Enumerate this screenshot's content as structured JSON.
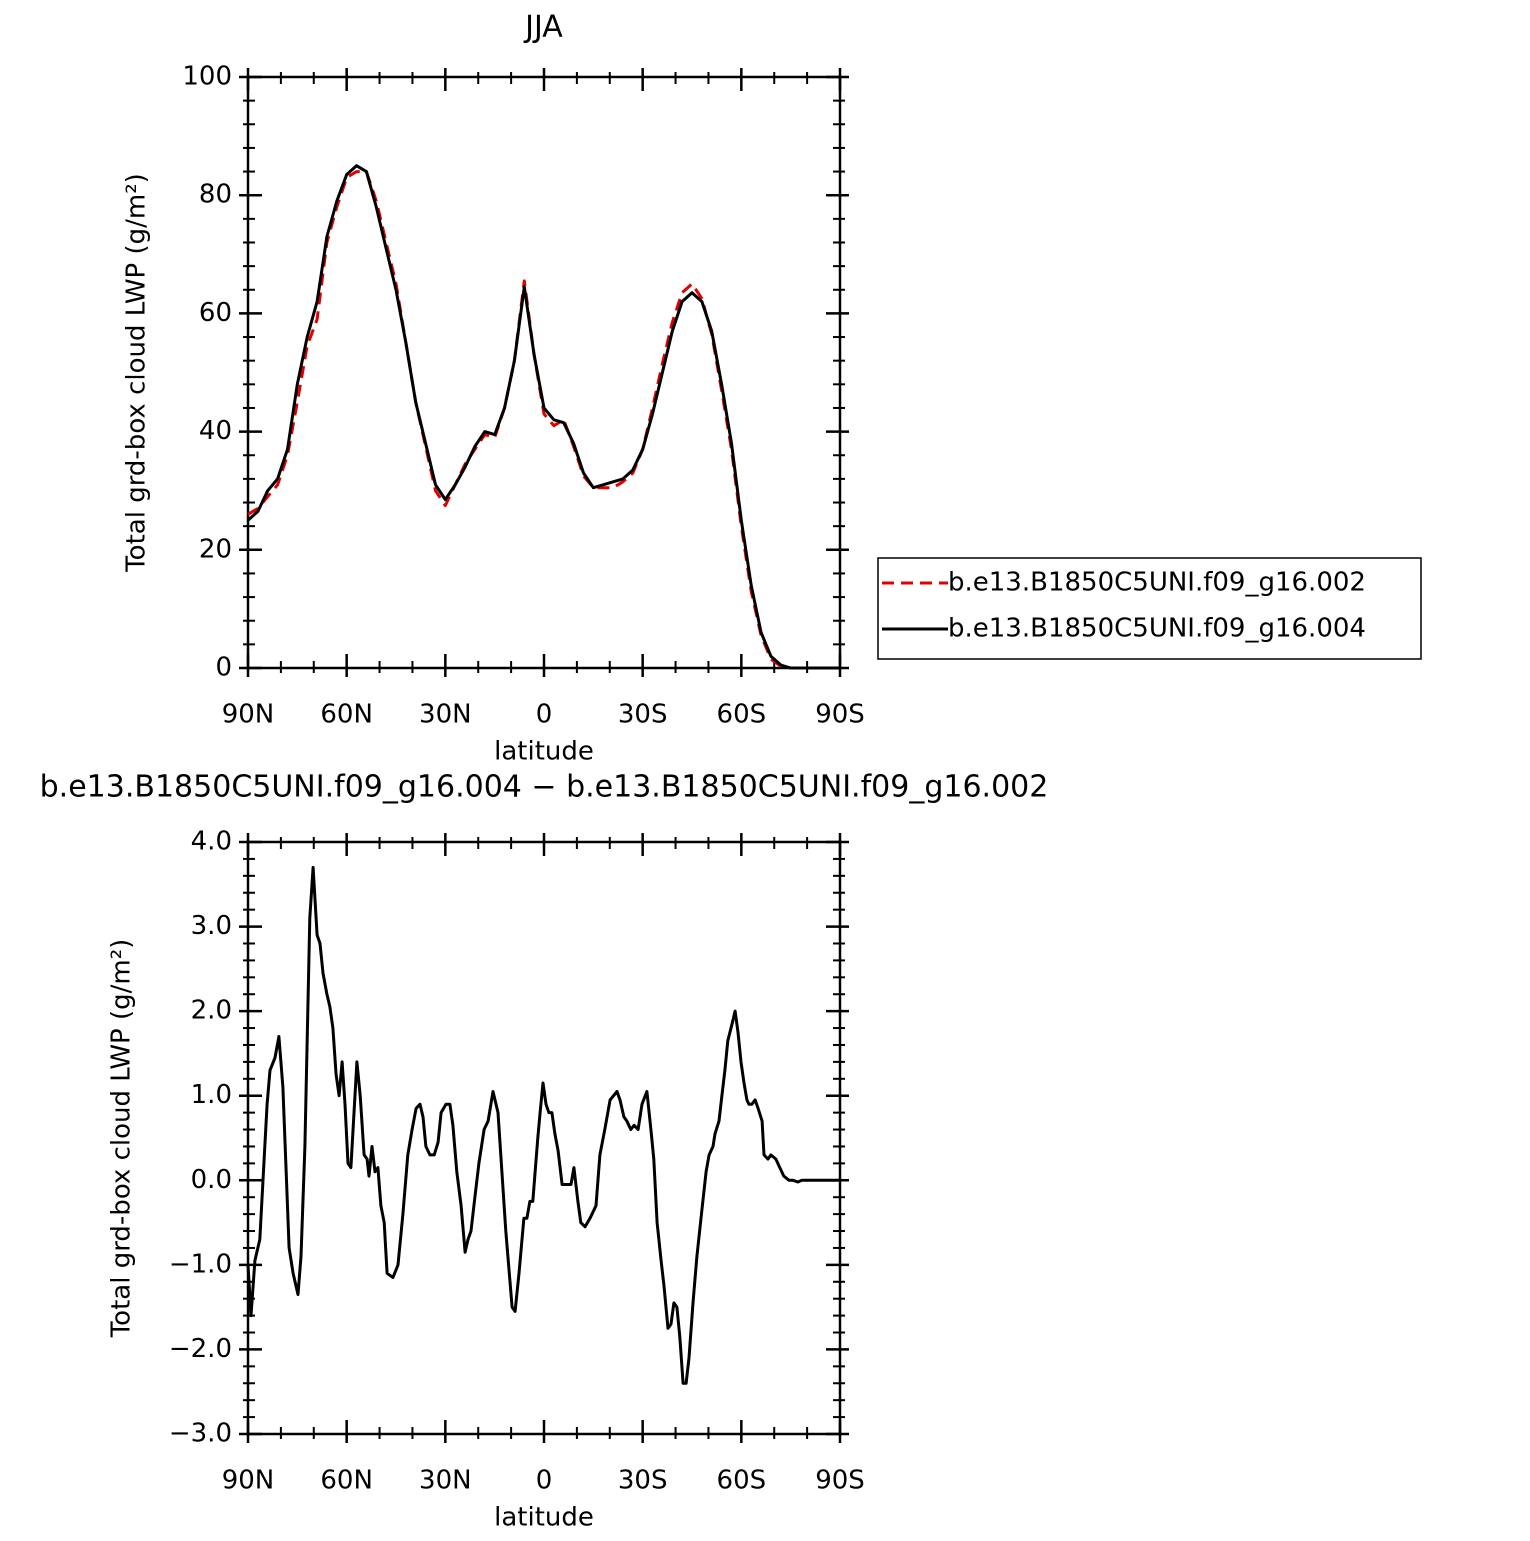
{
  "chart_data": [
    {
      "type": "line",
      "title": "JJA",
      "xlabel": "latitude",
      "ylabel": "Total grd-box cloud LWP (g/m²)",
      "x": [
        90,
        87,
        84,
        81,
        78,
        75,
        72,
        69,
        66,
        63,
        60,
        57,
        54,
        51,
        48,
        45,
        42,
        39,
        36,
        33,
        30,
        27,
        24,
        21,
        18,
        15,
        12,
        9,
        6,
        3,
        0,
        -3,
        -6,
        -9,
        -12,
        -15,
        -18,
        -21,
        -24,
        -27,
        -30,
        -33,
        -36,
        -39,
        -42,
        -45,
        -48,
        -51,
        -54,
        -57,
        -60,
        -63,
        -66,
        -69,
        -72,
        -75,
        -78,
        -81,
        -84,
        -87,
        -90
      ],
      "series": [
        {
          "name": "b.e13.B1850C5UNI.f09_g16.002",
          "color": "#e00000",
          "dash": true,
          "values": [
            26,
            27,
            29,
            31,
            36,
            45,
            54.5,
            59,
            72,
            78,
            83,
            84,
            84,
            79,
            72,
            65,
            55,
            45,
            37.5,
            30,
            27.5,
            31,
            34.5,
            37,
            39.5,
            39,
            44,
            52,
            65.5,
            53,
            43,
            41,
            42,
            37.5,
            32.5,
            30.5,
            30.5,
            30.5,
            31.5,
            33,
            37,
            44,
            51.5,
            58.5,
            63.5,
            65,
            62.5,
            56.5,
            47,
            37,
            24,
            13,
            5.5,
            1.5,
            0.3,
            0,
            0,
            0,
            0,
            0,
            0
          ]
        },
        {
          "name": "b.e13.B1850C5UNI.f09_g16.004",
          "color": "#000000",
          "dash": false,
          "values": [
            25,
            26.5,
            30,
            32,
            37,
            48,
            56,
            62,
            73,
            79,
            83.5,
            85,
            84,
            78,
            71,
            64,
            55,
            45,
            38,
            31,
            28.5,
            31,
            34,
            37.5,
            40,
            39.5,
            44,
            52,
            64.5,
            53,
            44,
            42,
            41.5,
            38,
            33,
            30.5,
            31,
            31.5,
            32,
            33.5,
            37,
            43,
            50,
            57,
            62,
            63.5,
            62,
            57,
            48,
            38,
            25,
            14,
            6,
            2,
            0.5,
            0,
            0,
            0,
            0,
            0,
            0
          ]
        }
      ],
      "xlim": [
        90,
        -90
      ],
      "xticks": [
        {
          "value": 90,
          "label": "90N"
        },
        {
          "value": 60,
          "label": "60N"
        },
        {
          "value": 30,
          "label": "30N"
        },
        0,
        {
          "value": -30,
          "label": "30S"
        },
        {
          "value": -60,
          "label": "60S"
        },
        {
          "value": -90,
          "label": "90S"
        }
      ],
      "ylim": [
        0,
        100
      ],
      "yticks": [
        0,
        20,
        40,
        60,
        80,
        100
      ],
      "legend": "right"
    },
    {
      "type": "line",
      "title": "b.e13.B1850C5UNI.f09_g16.004 − b.e13.B1850C5UNI.f09_g16.002",
      "xlabel": "latitude",
      "ylabel": "Total grd-box cloud LWP (g/m²)",
      "x": [
        90,
        89.1,
        87.9,
        86.4,
        84.2,
        83.3,
        81.8,
        80.6,
        79.4,
        77.5,
        76.3,
        74.8,
        73.9,
        72.7,
        71.2,
        70.2,
        69.0,
        68.1,
        67.2,
        66.0,
        65.1,
        64.2,
        63.2,
        62.3,
        61.4,
        60.5,
        59.6,
        58.7,
        56.9,
        55.9,
        54.7,
        53.8,
        53.2,
        52.3,
        51.4,
        50.5,
        49.6,
        48.6,
        47.7,
        45.9,
        44.4,
        42.9,
        41.4,
        40.1,
        38.9,
        37.7,
        36.8,
        35.9,
        34.7,
        33.4,
        32.2,
        31.3,
        29.8,
        28.6,
        27.7,
        26.5,
        25.2,
        24.0,
        23.1,
        22.2,
        21.0,
        19.8,
        18.2,
        17.0,
        15.5,
        14.0,
        12.8,
        11.6,
        9.7,
        8.8,
        7.6,
        6.1,
        5.2,
        4.3,
        3.4,
        1.9,
        1.2,
        0.3,
        -0.6,
        -1.5,
        -2.4,
        -3.3,
        -4.3,
        -5.5,
        -6.7,
        -8.2,
        -9.1,
        -10.3,
        -11.2,
        -12.5,
        -14.0,
        -15.8,
        -17.0,
        -18.5,
        -20.1,
        -22.2,
        -23.1,
        -24.3,
        -25.2,
        -26.4,
        -27.4,
        -28.6,
        -29.8,
        -31.3,
        -32.5,
        -33.4,
        -34.4,
        -35.6,
        -36.5,
        -37.7,
        -38.6,
        -39.5,
        -40.4,
        -41.3,
        -42.3,
        -43.2,
        -44.1,
        -45.3,
        -46.5,
        -48.0,
        -49.3,
        -50.2,
        -51.4,
        -52.0,
        -53.2,
        -54.1,
        -55.0,
        -55.9,
        -57.2,
        -58.1,
        -59.0,
        -59.9,
        -60.8,
        -61.7,
        -62.3,
        -63.2,
        -64.2,
        -65.1,
        -66.3,
        -66.9,
        -68.1,
        -69.0,
        -70.5,
        -71.7,
        -72.9,
        -74.5,
        -75.7,
        -77.2,
        -78.4,
        -90
      ],
      "values": [
        -1.0,
        -1.6,
        -0.95,
        -0.7,
        0.9,
        1.3,
        1.45,
        1.7,
        1.1,
        -0.8,
        -1.1,
        -1.35,
        -0.9,
        0.4,
        3.1,
        3.7,
        2.9,
        2.8,
        2.45,
        2.2,
        2.05,
        1.8,
        1.25,
        1.0,
        1.4,
        0.9,
        0.2,
        0.15,
        1.4,
        1.0,
        0.3,
        0.25,
        0.05,
        0.4,
        0.1,
        0.15,
        -0.3,
        -0.5,
        -1.1,
        -1.15,
        -1.0,
        -0.4,
        0.3,
        0.6,
        0.85,
        0.9,
        0.75,
        0.4,
        0.3,
        0.3,
        0.45,
        0.8,
        0.9,
        0.9,
        0.65,
        0.1,
        -0.3,
        -0.85,
        -0.7,
        -0.6,
        -0.2,
        0.2,
        0.6,
        0.7,
        1.05,
        0.8,
        0.1,
        -0.6,
        -1.5,
        -1.55,
        -1.1,
        -0.45,
        -0.45,
        -0.25,
        -0.25,
        0.5,
        0.8,
        1.15,
        0.9,
        0.8,
        0.8,
        0.55,
        0.35,
        -0.05,
        -0.05,
        -0.05,
        0.15,
        -0.25,
        -0.5,
        -0.55,
        -0.45,
        -0.3,
        0.3,
        0.6,
        0.95,
        1.05,
        0.95,
        0.75,
        0.7,
        0.6,
        0.65,
        0.6,
        0.9,
        1.05,
        0.6,
        0.25,
        -0.5,
        -0.95,
        -1.25,
        -1.75,
        -1.7,
        -1.45,
        -1.5,
        -1.85,
        -2.4,
        -2.4,
        -2.1,
        -1.45,
        -0.9,
        -0.35,
        0.1,
        0.3,
        0.4,
        0.55,
        0.7,
        1.0,
        1.3,
        1.65,
        1.85,
        2.0,
        1.75,
        1.4,
        1.15,
        0.95,
        0.9,
        0.9,
        0.95,
        0.85,
        0.7,
        0.3,
        0.25,
        0.3,
        0.25,
        0.15,
        0.05,
        0,
        0,
        -0.02,
        0,
        0
      ],
      "color": "#000000",
      "xlim": [
        90,
        -90
      ],
      "xticks": [
        {
          "value": 90,
          "label": "90N"
        },
        {
          "value": 60,
          "label": "60N"
        },
        {
          "value": 30,
          "label": "30N"
        },
        0,
        {
          "value": -30,
          "label": "30S"
        },
        {
          "value": -60,
          "label": "60S"
        },
        {
          "value": -90,
          "label": "90S"
        }
      ],
      "ylim": [
        -3,
        4
      ],
      "yticks": [
        {
          "value": -3,
          "label": "−3.0"
        },
        {
          "value": -2,
          "label": "−2.0"
        },
        {
          "value": -1,
          "label": "−1.0"
        },
        {
          "value": 0,
          "label": "0.0"
        },
        {
          "value": 1,
          "label": "1.0"
        },
        {
          "value": 2,
          "label": "2.0"
        },
        {
          "value": 3,
          "label": "3.0"
        },
        {
          "value": 4,
          "label": "4.0"
        }
      ]
    }
  ]
}
